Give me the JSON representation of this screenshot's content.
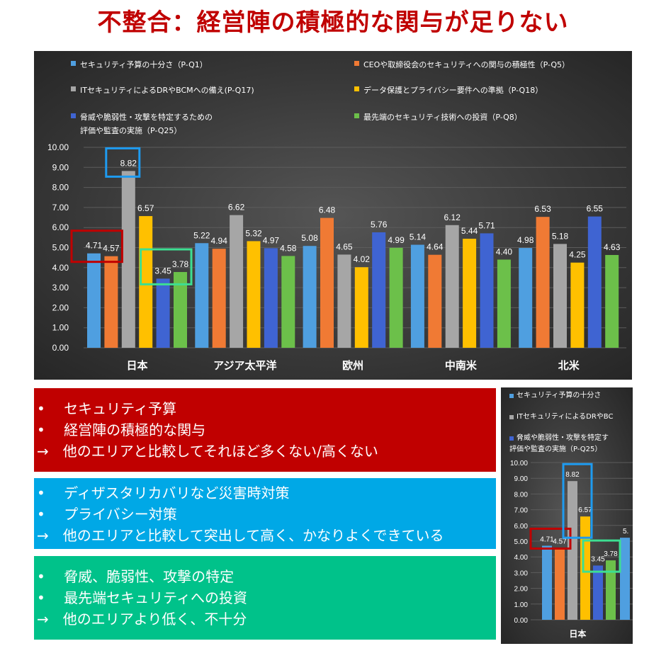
{
  "title": "不整合：経営陣の積極的な関与が足りない",
  "colors": {
    "s1": "#4f9fe0",
    "s2": "#f07a34",
    "s3": "#a6a6a6",
    "s4": "#ffc000",
    "s5": "#3f64d2",
    "s6": "#6cc04a",
    "red_frame": "#c00000",
    "blue_frame": "#1e9bf0",
    "green_frame": "#3dde92"
  },
  "chart_data": {
    "type": "bar",
    "categories": [
      "日本",
      "アジア太平洋",
      "欧州",
      "中南米",
      "北米"
    ],
    "series": [
      {
        "name": "セキュリティ予算の十分さ（P-Q1）",
        "values": [
          4.71,
          5.22,
          5.08,
          5.14,
          4.98
        ]
      },
      {
        "name": "CEOや取締役会のセキュリティへの関与の積極性（P-Q5）",
        "values": [
          4.57,
          4.94,
          6.48,
          4.64,
          6.53
        ]
      },
      {
        "name": "ITセキュリティによるDRやBCMへの備え(P-Q17)",
        "values": [
          8.82,
          6.62,
          4.65,
          6.12,
          5.18
        ]
      },
      {
        "name": "データ保護とプライバシー要件への準拠（P-Q18）",
        "values": [
          6.57,
          5.32,
          4.02,
          5.44,
          4.25
        ]
      },
      {
        "name": "脅威や脆弱性・攻撃を特定するための\n評価や監査の実施（P-Q25）",
        "values": [
          3.45,
          4.97,
          5.76,
          5.71,
          6.55
        ]
      },
      {
        "name": "最先端のセキュリティ技術への投資（P-Q8）",
        "values": [
          3.78,
          4.58,
          4.99,
          4.4,
          4.63
        ]
      }
    ],
    "ylim": [
      0,
      10
    ],
    "yticks": [
      "0.00",
      "1.00",
      "2.00",
      "3.00",
      "4.00",
      "5.00",
      "6.00",
      "7.00",
      "8.00",
      "9.00",
      "10.00"
    ],
    "highlights": [
      {
        "category": 0,
        "series": [
          0,
          1
        ],
        "color": "red_frame"
      },
      {
        "category": 0,
        "series": [
          2
        ],
        "color": "blue_frame"
      },
      {
        "category": 0,
        "series": [
          4,
          5
        ],
        "color": "green_frame"
      }
    ]
  },
  "boxes": {
    "red": {
      "lines": [
        "•　 セキュリティ予算",
        "•　 経営陣の積極的な関与",
        "→　他のエリアと比較してそれほど多くない/高くない"
      ]
    },
    "blue": {
      "lines": [
        "•　 ディザスタリカバリなど災害時対策",
        "•　 プライバシー対策",
        "→　他のエリアと比較して突出して高く、かなりよくできている"
      ]
    },
    "green": {
      "lines": [
        "•　 脅威、脆弱性、攻撃の特定",
        "•　 最先端セキュリティへの投資",
        "→　他のエリアより低く、不十分"
      ]
    }
  },
  "mini_chart": {
    "legend": [
      {
        "text": "セキュリティ予算の十分さ",
        "series": 0
      },
      {
        "text": "ITセキュリティによるDRやBC",
        "series": 2
      },
      {
        "text": "脅威や脆弱性・攻撃を特定す",
        "series": 4
      }
    ],
    "legend_line2": "評価や監査の実施（P-Q25）",
    "category": "日本",
    "partial_label": "5."
  }
}
